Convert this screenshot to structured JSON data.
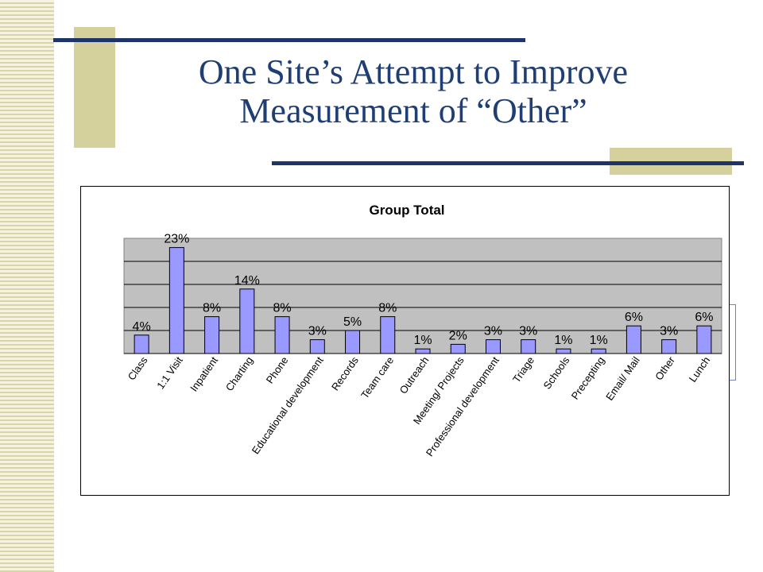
{
  "slide": {
    "title_line1": "One Site’s Attempt to Improve",
    "title_line2": "Measurement of “Other”"
  },
  "chart_data": {
    "type": "bar",
    "title": "Group Total",
    "xlabel": "",
    "ylabel": "",
    "ylim": [
      0,
      25
    ],
    "grid": true,
    "legend": "none",
    "categories": [
      "Class",
      "1:1 Visit",
      "Inpatient",
      "Charting",
      "Phone",
      "Educational development",
      "Records",
      "Team care",
      "Outreach",
      "Meeting/ Projects",
      "Professional development",
      "Triage",
      "Schools",
      "Precepting",
      "Email/ Mail",
      "Other",
      "Lunch"
    ],
    "values": [
      4,
      23,
      8,
      14,
      8,
      3,
      5,
      8,
      1,
      2,
      3,
      3,
      1,
      1,
      6,
      3,
      6
    ],
    "data_labels": [
      "4%",
      "23%",
      "8%",
      "14%",
      "8%",
      "3%",
      "5%",
      "8%",
      "1%",
      "2%",
      "3%",
      "3%",
      "1%",
      "1%",
      "6%",
      "3%",
      "6%"
    ],
    "colors": {
      "bar_fill": "#9999ff",
      "bar_stroke": "#000000",
      "plot_bg": "#c0c0c0",
      "grid": "#000000"
    }
  }
}
